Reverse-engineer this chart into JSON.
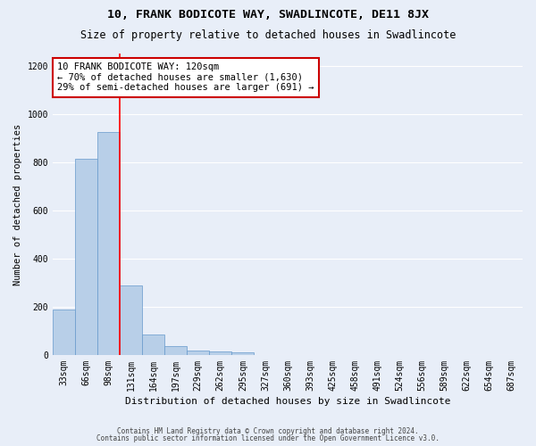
{
  "title1": "10, FRANK BODICOTE WAY, SWADLINCOTE, DE11 8JX",
  "title2": "Size of property relative to detached houses in Swadlincote",
  "xlabel": "Distribution of detached houses by size in Swadlincote",
  "ylabel": "Number of detached properties",
  "bin_labels": [
    "33sqm",
    "66sqm",
    "98sqm",
    "131sqm",
    "164sqm",
    "197sqm",
    "229sqm",
    "262sqm",
    "295sqm",
    "327sqm",
    "360sqm",
    "393sqm",
    "425sqm",
    "458sqm",
    "491sqm",
    "524sqm",
    "556sqm",
    "589sqm",
    "622sqm",
    "654sqm",
    "687sqm"
  ],
  "bar_values": [
    190,
    815,
    925,
    290,
    85,
    35,
    20,
    15,
    12,
    0,
    0,
    0,
    0,
    0,
    0,
    0,
    0,
    0,
    0,
    0,
    0
  ],
  "bar_color": "#b8cfe8",
  "bar_edge_color": "#6699cc",
  "vline_bin_index": 2,
  "annotation_line1": "10 FRANK BODICOTE WAY: 120sqm",
  "annotation_line2": "← 70% of detached houses are smaller (1,630)",
  "annotation_line3": "29% of semi-detached houses are larger (691) →",
  "annotation_box_color": "#ffffff",
  "annotation_box_edge": "#cc0000",
  "ylim": [
    0,
    1250
  ],
  "yticks": [
    0,
    200,
    400,
    600,
    800,
    1000,
    1200
  ],
  "footer1": "Contains HM Land Registry data © Crown copyright and database right 2024.",
  "footer2": "Contains public sector information licensed under the Open Government Licence v3.0.",
  "bg_color": "#e8eef8",
  "grid_color": "#ffffff",
  "title1_fontsize": 9.5,
  "title2_fontsize": 8.5,
  "xlabel_fontsize": 8,
  "ylabel_fontsize": 7.5,
  "tick_fontsize": 7,
  "annot_fontsize": 7.5,
  "footer_fontsize": 5.5
}
